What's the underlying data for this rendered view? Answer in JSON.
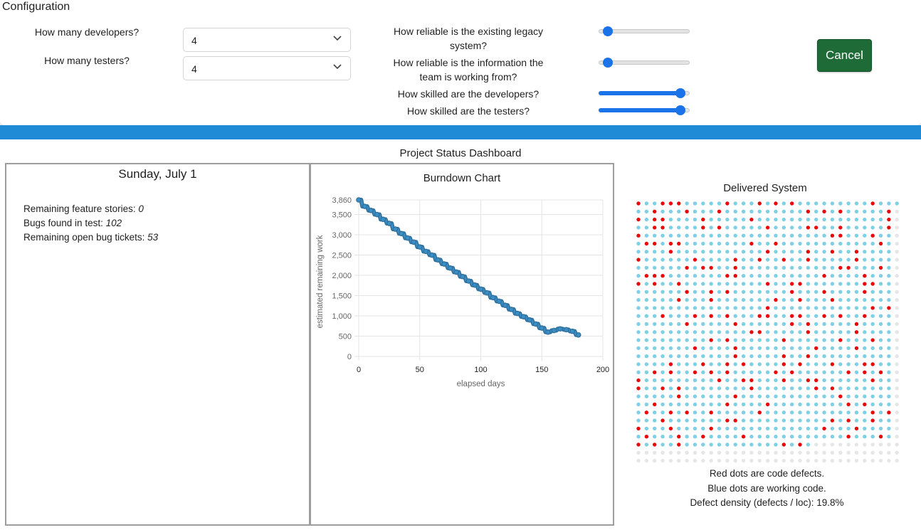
{
  "config": {
    "title": "Configuration",
    "developers": {
      "label": "How many developers?",
      "value": "4"
    },
    "testers": {
      "label": "How many testers?",
      "value": "4"
    },
    "sliders": [
      {
        "label_line1": "How reliable is the existing legacy",
        "label_line2": "system?",
        "level": 0.05
      },
      {
        "label_line1": "How reliable is the information the",
        "label_line2": "team is working from?",
        "level": 0.05
      },
      {
        "label_line1": "How skilled are the developers?",
        "label_line2": "",
        "level": 0.95
      },
      {
        "label_line1": "How skilled are the testers?",
        "label_line2": "",
        "level": 0.95
      }
    ],
    "cancel_label": "Cancel"
  },
  "dashboard": {
    "title": "Project Status Dashboard",
    "date": "Sunday, July 1",
    "stats": {
      "features_label": "Remaining feature stories: ",
      "features_value": "0",
      "bugs_label": "Bugs found in test: ",
      "bugs_value": "102",
      "tickets_label": "Remaining open bug tickets: ",
      "tickets_value": "53"
    }
  },
  "chart_data": {
    "type": "scatter",
    "title": "Burndown Chart",
    "xlabel": "elapsed days",
    "ylabel": "estimated remaining work",
    "xlim": [
      0,
      200
    ],
    "ylim": [
      0,
      3860
    ],
    "x_ticks": [
      "0",
      "50",
      "100",
      "150",
      "200"
    ],
    "y_ticks": [
      "0",
      "500",
      "1,000",
      "1,500",
      "2,000",
      "2,500",
      "3,000",
      "3,500",
      "3,860"
    ],
    "grid": true,
    "point_color": "#3b8ec4",
    "x": [
      0,
      5,
      10,
      15,
      20,
      25,
      30,
      35,
      40,
      45,
      50,
      55,
      60,
      65,
      70,
      75,
      80,
      85,
      90,
      95,
      100,
      105,
      110,
      115,
      120,
      125,
      130,
      135,
      140,
      145,
      150,
      155,
      160,
      165,
      170,
      175,
      180
    ],
    "y": [
      3860,
      3700,
      3600,
      3500,
      3380,
      3280,
      3140,
      3030,
      2920,
      2820,
      2700,
      2590,
      2500,
      2380,
      2280,
      2180,
      2080,
      1970,
      1860,
      1760,
      1660,
      1570,
      1450,
      1360,
      1260,
      1160,
      1060,
      980,
      900,
      800,
      700,
      600,
      640,
      680,
      660,
      620,
      530
    ]
  },
  "delivered": {
    "title": "Delivered System",
    "legend_red": "Red dots are code defects.",
    "legend_blue": "Blue dots are working code.",
    "density_text": "Defect density (defects / loc): 19.8%",
    "colors": {
      "working": "#7fd0e4",
      "defect": "#e8080a",
      "empty": "#e6e6e6"
    },
    "defect_density": 0.198
  }
}
